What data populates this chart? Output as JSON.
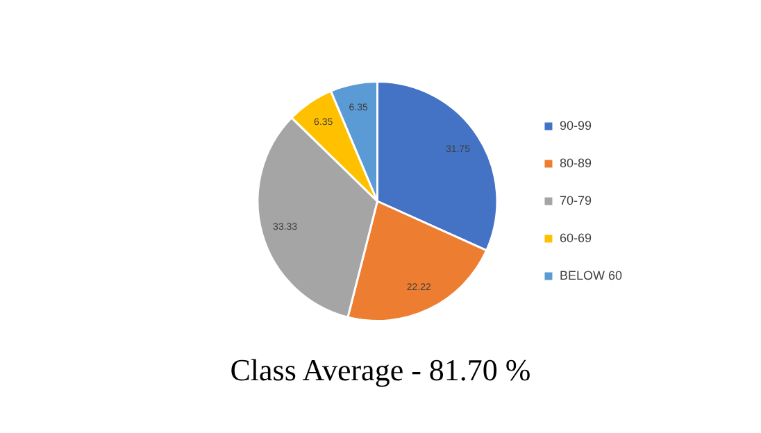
{
  "chart_data": {
    "type": "pie",
    "title": "Class Average - 81.70 %",
    "categories": [
      "90-99",
      "80-89",
      "70-79",
      "60-69",
      "BELOW 60"
    ],
    "values": [
      31.75,
      22.22,
      33.33,
      6.35,
      6.35
    ],
    "colors": [
      "#4472c4",
      "#ed7d31",
      "#a5a5a5",
      "#ffc000",
      "#5b9bd5"
    ],
    "data_labels": true,
    "legend": "right"
  }
}
